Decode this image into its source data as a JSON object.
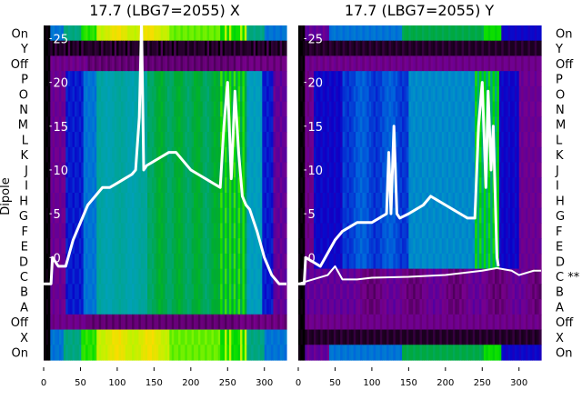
{
  "chart_data": [
    {
      "type": "heatmap",
      "title": "17.7 (LBG7=2055) X",
      "ylabel": "Dipole",
      "row_labels": [
        "On",
        "Y",
        "Off",
        "P",
        "O",
        "N",
        "M",
        "L",
        "K",
        "J",
        "I",
        "H",
        "G",
        "F",
        "E",
        "D",
        "C",
        "B",
        "A",
        "Off",
        "X",
        "On"
      ],
      "xticks": [
        0,
        50,
        100,
        150,
        200,
        250,
        300
      ],
      "xlim": [
        0,
        330
      ],
      "overlay_yticks": [
        0,
        5,
        10,
        15,
        20,
        25
      ],
      "overlay_ylim": [
        -11.7,
        26.5
      ],
      "series": [
        {
          "name": "trace",
          "x": [
            0,
            10,
            12,
            20,
            30,
            40,
            50,
            60,
            70,
            80,
            90,
            100,
            110,
            120,
            125,
            130,
            133,
            136,
            140,
            150,
            160,
            170,
            180,
            190,
            200,
            210,
            220,
            230,
            240,
            245,
            250,
            255,
            260,
            265,
            270,
            275,
            280,
            290,
            300,
            310,
            320,
            330
          ],
          "y": [
            -3,
            -3,
            0,
            -1,
            -1,
            2,
            4,
            6,
            7,
            8,
            8,
            8.5,
            9,
            9.5,
            10,
            16,
            27,
            10,
            10.5,
            11,
            11.5,
            12,
            12,
            11,
            10,
            9.5,
            9,
            8.5,
            8,
            15,
            20,
            9,
            19,
            12,
            7,
            6,
            5.5,
            3,
            0,
            -2,
            -3,
            -3
          ]
        }
      ]
    },
    {
      "type": "heatmap",
      "title": "17.7 (LBG7=2055) Y",
      "row_labels": [
        "On",
        "Y",
        "Off",
        "P",
        "O",
        "N",
        "M",
        "L",
        "K",
        "J",
        "I",
        "H",
        "G",
        "F",
        "E",
        "D",
        "C **",
        "B",
        "A",
        "Off",
        "X",
        "On"
      ],
      "xticks": [
        0,
        50,
        100,
        150,
        200,
        250,
        300
      ],
      "xlim": [
        0,
        330
      ],
      "overlay_yticks": [
        0,
        5,
        10,
        15,
        20,
        25
      ],
      "overlay_ylim": [
        -11.7,
        26.5
      ],
      "series": [
        {
          "name": "trace",
          "x": [
            0,
            8,
            10,
            20,
            30,
            40,
            50,
            60,
            70,
            80,
            90,
            100,
            110,
            120,
            123,
            126,
            130,
            134,
            138,
            150,
            160,
            170,
            180,
            190,
            200,
            210,
            220,
            230,
            240,
            245,
            250,
            255,
            258,
            262,
            265,
            270,
            272
          ],
          "y": [
            -3,
            -3,
            0,
            -0.5,
            -1,
            0.5,
            2,
            3,
            3.5,
            4,
            4,
            4,
            4.5,
            5,
            12,
            5,
            15,
            5,
            4.5,
            5,
            5.5,
            6,
            7,
            6.5,
            6,
            5.5,
            5,
            4.5,
            4.5,
            15,
            20,
            8,
            19,
            10,
            15,
            0,
            -1
          ]
        },
        {
          "name": "lower",
          "x": [
            0,
            40,
            50,
            60,
            80,
            100,
            150,
            200,
            250,
            270,
            290,
            300,
            320,
            330
          ],
          "y": [
            -3,
            -2,
            -1,
            -2.5,
            -2.5,
            -2.3,
            -2.2,
            -2,
            -1.5,
            -1.2,
            -1.5,
            -2,
            -1.5,
            -1.5
          ]
        }
      ]
    }
  ]
}
